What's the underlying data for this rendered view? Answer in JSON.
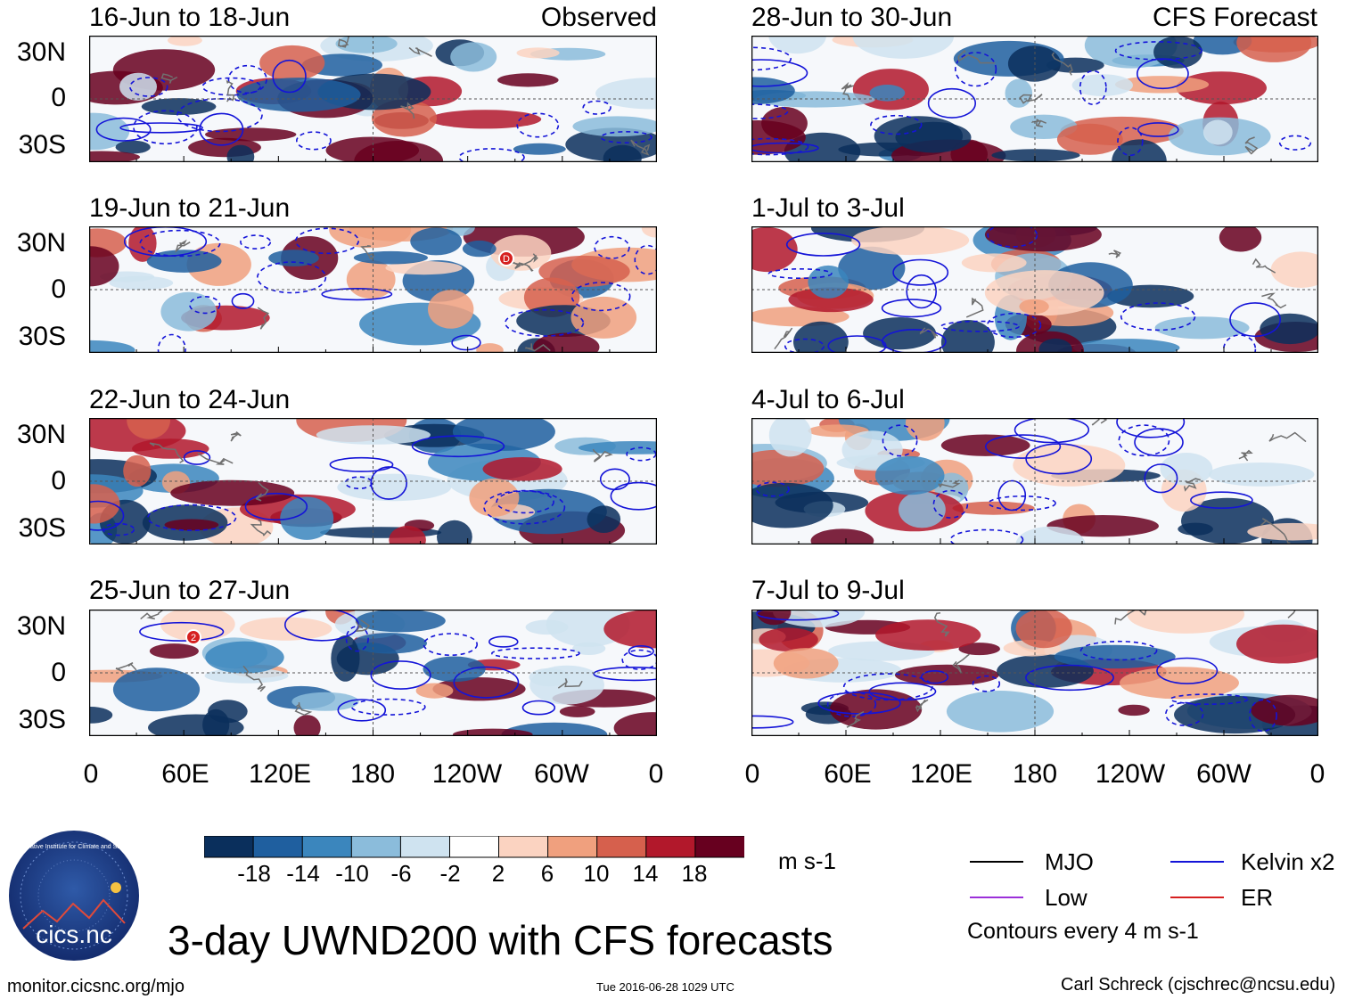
{
  "panels_left": [
    {
      "title": "16-Jun to 18-Jun",
      "label": "Observed"
    },
    {
      "title": "19-Jun to 21-Jun",
      "label": ""
    },
    {
      "title": "22-Jun to 24-Jun",
      "label": ""
    },
    {
      "title": "25-Jun to 27-Jun",
      "label": ""
    }
  ],
  "panels_right": [
    {
      "title": "28-Jun to 30-Jun",
      "label": "CFS Forecast"
    },
    {
      "title": "1-Jul to 3-Jul",
      "label": ""
    },
    {
      "title": "4-Jul to 6-Jul",
      "label": ""
    },
    {
      "title": "7-Jul to 9-Jul",
      "label": ""
    }
  ],
  "lat_labels": [
    "30N",
    "0",
    "30S"
  ],
  "lon_labels": [
    "0",
    "60E",
    "120E",
    "180",
    "120W",
    "60W",
    "0"
  ],
  "colorbar": {
    "labels": [
      "-18",
      "-14",
      "-10",
      "-6",
      "-2",
      "2",
      "6",
      "10",
      "14",
      "18"
    ],
    "colors": [
      "#0a2f5c",
      "#1f5f9f",
      "#3b86bd",
      "#8bbcdb",
      "#cfe3f0",
      "#ffffff",
      "#fbd3c1",
      "#f0a07e",
      "#d6604d",
      "#b2182b",
      "#67001f"
    ],
    "units": "m s-1"
  },
  "legend": {
    "mjo": {
      "label": "MJO",
      "color": "#000000"
    },
    "kelvin": {
      "label": "Kelvin x2",
      "color": "#1414d8"
    },
    "low": {
      "label": "Low",
      "color": "#9b30d9"
    },
    "er": {
      "label": "ER",
      "color": "#d62020"
    },
    "note": "Contours every 4 m s-1"
  },
  "logo": {
    "text": "cics.nc",
    "ring_text": "Cooperative Institute for Climate and Satellites"
  },
  "title": "3-day UWND200 with CFS forecasts",
  "footer": {
    "url": "monitor.cicsnc.org/mjo",
    "timestamp": "Tue 2016-06-28 1029 UTC",
    "author": "Carl Schreck (cjschrec@ncsu.edu)"
  },
  "markers": [
    "D",
    "2"
  ]
}
